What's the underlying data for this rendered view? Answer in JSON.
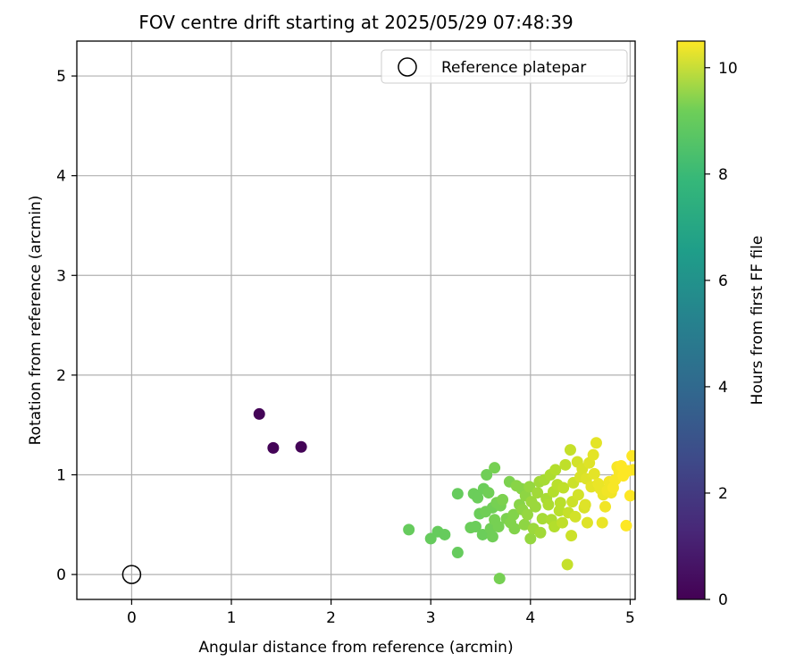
{
  "chart_data": {
    "type": "scatter",
    "title": "FOV centre drift starting at 2025/05/29 07:48:39",
    "xlabel": "Angular distance from reference (arcmin)",
    "ylabel": "Rotation from reference (arcmin)",
    "xlim": [
      -0.55,
      5.05
    ],
    "ylim": [
      -0.25,
      5.35
    ],
    "xticks": [
      0,
      1,
      2,
      3,
      4,
      5
    ],
    "yticks": [
      0,
      1,
      2,
      3,
      4,
      5
    ],
    "grid": true,
    "legend": {
      "position": "top-right",
      "entries": [
        "Reference platepar"
      ]
    },
    "colorbar": {
      "label": "Hours from first FF file",
      "range": [
        0,
        10.5
      ],
      "ticks": [
        0,
        2,
        4,
        6,
        8,
        10
      ],
      "colormap": "viridis"
    },
    "reference": {
      "x": 0,
      "y": 0
    },
    "points": [
      {
        "x": 1.28,
        "y": 1.61,
        "h": 0.1
      },
      {
        "x": 1.42,
        "y": 1.27,
        "h": 0.1
      },
      {
        "x": 1.7,
        "y": 1.28,
        "h": 0.1
      },
      {
        "x": 2.78,
        "y": 0.45,
        "h": 8.0
      },
      {
        "x": 3.0,
        "y": 0.36,
        "h": 8.0
      },
      {
        "x": 3.07,
        "y": 0.43,
        "h": 8.0
      },
      {
        "x": 3.14,
        "y": 0.4,
        "h": 8.0
      },
      {
        "x": 3.27,
        "y": 0.22,
        "h": 8.0
      },
      {
        "x": 3.27,
        "y": 0.81,
        "h": 8.0
      },
      {
        "x": 3.4,
        "y": 0.47,
        "h": 8.1
      },
      {
        "x": 3.43,
        "y": 0.81,
        "h": 8.1
      },
      {
        "x": 3.45,
        "y": 0.48,
        "h": 8.1
      },
      {
        "x": 3.47,
        "y": 0.77,
        "h": 8.1
      },
      {
        "x": 3.49,
        "y": 0.61,
        "h": 8.1
      },
      {
        "x": 3.52,
        "y": 0.4,
        "h": 8.1
      },
      {
        "x": 3.53,
        "y": 0.86,
        "h": 8.1
      },
      {
        "x": 3.55,
        "y": 0.63,
        "h": 8.2
      },
      {
        "x": 3.56,
        "y": 1.0,
        "h": 8.2
      },
      {
        "x": 3.58,
        "y": 0.82,
        "h": 8.2
      },
      {
        "x": 3.6,
        "y": 0.46,
        "h": 8.2
      },
      {
        "x": 3.62,
        "y": 0.38,
        "h": 8.2
      },
      {
        "x": 3.62,
        "y": 0.67,
        "h": 8.2
      },
      {
        "x": 3.64,
        "y": 0.55,
        "h": 8.3
      },
      {
        "x": 3.64,
        "y": 1.07,
        "h": 8.3
      },
      {
        "x": 3.66,
        "y": 0.72,
        "h": 8.3
      },
      {
        "x": 3.68,
        "y": 0.48,
        "h": 8.3
      },
      {
        "x": 3.69,
        "y": -0.04,
        "h": 8.3
      },
      {
        "x": 3.7,
        "y": 0.69,
        "h": 8.3
      },
      {
        "x": 3.72,
        "y": 0.75,
        "h": 8.4
      },
      {
        "x": 3.76,
        "y": 0.56,
        "h": 8.4
      },
      {
        "x": 3.79,
        "y": 0.93,
        "h": 8.4
      },
      {
        "x": 3.8,
        "y": 0.52,
        "h": 8.5
      },
      {
        "x": 3.83,
        "y": 0.6,
        "h": 8.5
      },
      {
        "x": 3.84,
        "y": 0.46,
        "h": 8.5
      },
      {
        "x": 3.86,
        "y": 0.89,
        "h": 8.6
      },
      {
        "x": 3.89,
        "y": 0.7,
        "h": 8.6
      },
      {
        "x": 3.91,
        "y": 0.86,
        "h": 8.6
      },
      {
        "x": 3.92,
        "y": 0.65,
        "h": 8.7
      },
      {
        "x": 3.94,
        "y": 0.5,
        "h": 8.7
      },
      {
        "x": 3.95,
        "y": 0.79,
        "h": 8.7
      },
      {
        "x": 3.97,
        "y": 0.6,
        "h": 8.8
      },
      {
        "x": 3.99,
        "y": 0.88,
        "h": 8.8
      },
      {
        "x": 4.0,
        "y": 0.36,
        "h": 8.8
      },
      {
        "x": 4.01,
        "y": 0.73,
        "h": 8.9
      },
      {
        "x": 4.03,
        "y": 0.46,
        "h": 8.9
      },
      {
        "x": 4.05,
        "y": 0.68,
        "h": 8.9
      },
      {
        "x": 4.07,
        "y": 0.82,
        "h": 9.0
      },
      {
        "x": 4.09,
        "y": 0.93,
        "h": 9.0
      },
      {
        "x": 4.1,
        "y": 0.42,
        "h": 9.0
      },
      {
        "x": 4.12,
        "y": 0.56,
        "h": 9.1
      },
      {
        "x": 4.14,
        "y": 0.95,
        "h": 9.1
      },
      {
        "x": 4.16,
        "y": 0.76,
        "h": 9.1
      },
      {
        "x": 4.18,
        "y": 0.7,
        "h": 9.2
      },
      {
        "x": 4.2,
        "y": 1.0,
        "h": 9.2
      },
      {
        "x": 4.21,
        "y": 0.55,
        "h": 9.2
      },
      {
        "x": 4.23,
        "y": 0.83,
        "h": 9.3
      },
      {
        "x": 4.24,
        "y": 0.48,
        "h": 9.3
      },
      {
        "x": 4.25,
        "y": 1.05,
        "h": 9.3
      },
      {
        "x": 4.27,
        "y": 0.9,
        "h": 9.4
      },
      {
        "x": 4.29,
        "y": 0.64,
        "h": 9.4
      },
      {
        "x": 4.3,
        "y": 0.72,
        "h": 9.4
      },
      {
        "x": 4.32,
        "y": 0.52,
        "h": 9.5
      },
      {
        "x": 4.33,
        "y": 0.87,
        "h": 9.5
      },
      {
        "x": 4.35,
        "y": 1.1,
        "h": 9.5
      },
      {
        "x": 4.37,
        "y": 0.1,
        "h": 9.6
      },
      {
        "x": 4.38,
        "y": 0.62,
        "h": 9.6
      },
      {
        "x": 4.4,
        "y": 1.25,
        "h": 9.6
      },
      {
        "x": 4.41,
        "y": 0.39,
        "h": 9.7
      },
      {
        "x": 4.42,
        "y": 0.73,
        "h": 9.7
      },
      {
        "x": 4.43,
        "y": 0.92,
        "h": 9.7
      },
      {
        "x": 4.45,
        "y": 0.58,
        "h": 9.8
      },
      {
        "x": 4.47,
        "y": 1.13,
        "h": 9.8
      },
      {
        "x": 4.48,
        "y": 0.8,
        "h": 9.8
      },
      {
        "x": 4.5,
        "y": 0.98,
        "h": 9.9
      },
      {
        "x": 4.52,
        "y": 1.06,
        "h": 9.9
      },
      {
        "x": 4.54,
        "y": 0.67,
        "h": 9.9
      },
      {
        "x": 4.55,
        "y": 0.7,
        "h": 10.0
      },
      {
        "x": 4.56,
        "y": 0.96,
        "h": 10.0
      },
      {
        "x": 4.57,
        "y": 0.52,
        "h": 10.0
      },
      {
        "x": 4.59,
        "y": 1.12,
        "h": 10.0
      },
      {
        "x": 4.61,
        "y": 0.88,
        "h": 10.1
      },
      {
        "x": 4.63,
        "y": 1.2,
        "h": 10.1
      },
      {
        "x": 4.64,
        "y": 1.01,
        "h": 10.1
      },
      {
        "x": 4.66,
        "y": 1.32,
        "h": 10.1
      },
      {
        "x": 4.68,
        "y": 0.91,
        "h": 10.2
      },
      {
        "x": 4.7,
        "y": 0.86,
        "h": 10.2
      },
      {
        "x": 4.72,
        "y": 0.52,
        "h": 10.2
      },
      {
        "x": 4.73,
        "y": 0.8,
        "h": 10.2
      },
      {
        "x": 4.75,
        "y": 0.68,
        "h": 10.3
      },
      {
        "x": 4.77,
        "y": 0.84,
        "h": 10.3
      },
      {
        "x": 4.79,
        "y": 0.93,
        "h": 10.3
      },
      {
        "x": 4.81,
        "y": 0.82,
        "h": 10.3
      },
      {
        "x": 4.83,
        "y": 0.87,
        "h": 10.4
      },
      {
        "x": 4.85,
        "y": 0.95,
        "h": 10.4
      },
      {
        "x": 4.87,
        "y": 1.08,
        "h": 10.4
      },
      {
        "x": 4.89,
        "y": 1.03,
        "h": 10.4
      },
      {
        "x": 4.91,
        "y": 1.09,
        "h": 10.5
      },
      {
        "x": 4.93,
        "y": 0.99,
        "h": 10.5
      },
      {
        "x": 4.96,
        "y": 0.49,
        "h": 10.5
      },
      {
        "x": 4.98,
        "y": 1.04,
        "h": 10.5
      },
      {
        "x": 5.0,
        "y": 0.79,
        "h": 10.5
      },
      {
        "x": 5.02,
        "y": 1.19,
        "h": 10.5
      },
      {
        "x": 5.03,
        "y": 1.05,
        "h": 10.5
      }
    ]
  }
}
